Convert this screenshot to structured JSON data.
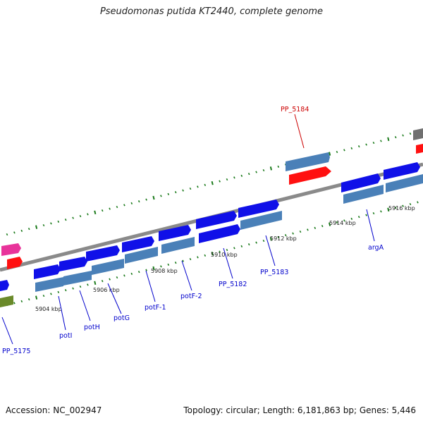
{
  "title": "Pseudomonas putida KT2440, complete genome",
  "footer": {
    "accession": "Accession: NC_002947",
    "stats": "Topology: circular; Length: 6,181,863 bp; Genes: 5,446"
  },
  "colors": {
    "backbone": "#8a8a8a",
    "gene_forward": "#1010e8",
    "gene_reverse": "#4a80b8",
    "highlight": "#ff1010",
    "tick": "#1a7a1a",
    "label": "#0000cc",
    "label_highlight": "#cc0000",
    "pink": "#e8339a",
    "olive": "#6a8a2a",
    "gray": "#707070"
  },
  "scale_labels": [
    "5904 kbp",
    "5906 kbp",
    "5908 kbp",
    "5910 kbp",
    "5912 kbp",
    "5914 kbp",
    "5916 kbp"
  ],
  "gene_labels": [
    "PP_5175",
    "potI",
    "potH",
    "potG",
    "potF-1",
    "potF-2",
    "PP_5182",
    "PP_5183",
    "PP_5184",
    "argA"
  ]
}
